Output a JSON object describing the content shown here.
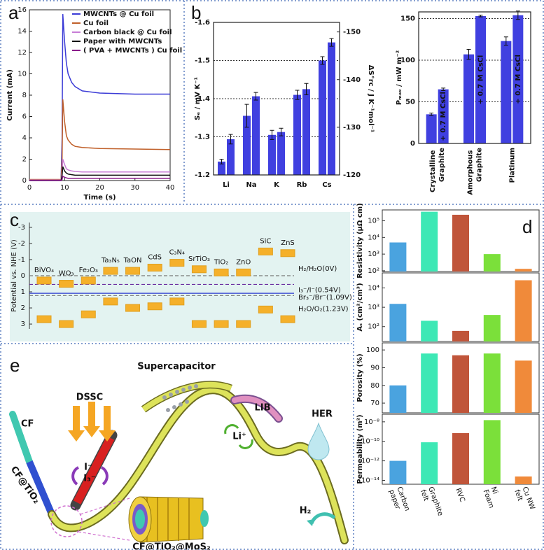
{
  "chart_data": [
    {
      "type": "line",
      "panel": "a",
      "xlabel": "Time (s)",
      "ylabel": "Current (mA)",
      "x": [
        0,
        9,
        9.3,
        9.5,
        10,
        10.5,
        11,
        12,
        13,
        15,
        20,
        30,
        40
      ],
      "xlim": [
        0,
        40
      ],
      "xticks": [
        0,
        10,
        20,
        30,
        40
      ],
      "ylim": [
        0,
        16
      ],
      "yticks": [
        0,
        2,
        4,
        6,
        8,
        10,
        12,
        14,
        16
      ],
      "legend": "upper right",
      "series": [
        {
          "name": "MWCNTs @ Cu foil",
          "color": "#3b3bd6",
          "values": [
            0,
            0,
            4,
            15.6,
            13,
            11,
            10,
            9.2,
            8.8,
            8.4,
            8.2,
            8.1,
            8.1
          ]
        },
        {
          "name": "Cu foil",
          "color": "#c0602a",
          "values": [
            0.1,
            0.1,
            2,
            7.6,
            5.5,
            4.2,
            3.8,
            3.4,
            3.2,
            3.1,
            3.0,
            2.95,
            2.9
          ]
        },
        {
          "name": "Carbon black @ Cu foil",
          "color": "#c77dd6",
          "values": [
            0.05,
            0.05,
            0.8,
            2,
            1.5,
            1.1,
            1,
            0.9,
            0.85,
            0.8,
            0.8,
            0.8,
            0.8
          ]
        },
        {
          "name": "Paper with MWCNTs",
          "color": "#111111",
          "values": [
            0,
            0,
            0.5,
            1.3,
            0.9,
            0.7,
            0.6,
            0.55,
            0.5,
            0.5,
            0.5,
            0.5,
            0.5
          ]
        },
        {
          "name": "( PVA + MWCNTs ) Cu foil",
          "color": "#8a1c8a",
          "values": [
            0,
            0,
            0.1,
            0.4,
            0.3,
            0.25,
            0.2,
            0.2,
            0.2,
            0.2,
            0.2,
            0.2,
            0.2
          ]
        }
      ]
    },
    {
      "type": "bar",
      "panel": "b",
      "ylabel": "Sₑ / mV K⁻¹",
      "y2label": "ΔS°rc / J K⁻¹mol⁻¹",
      "categories": [
        "Li",
        "Na",
        "K",
        "Rb",
        "Cs"
      ],
      "ylim": [
        -1.2,
        -1.6
      ],
      "yticks": [
        -1.2,
        -1.3,
        -1.4,
        -1.5,
        -1.6
      ],
      "y2lim": [
        -120,
        -152
      ],
      "y2ticks": [
        -120,
        -130,
        -140,
        -150
      ],
      "grid": true,
      "series": [
        {
          "color": "#4040e0",
          "values": [
            -1.235,
            -1.355,
            -1.305,
            -1.41,
            -1.5
          ],
          "errors": [
            0.006,
            0.03,
            0.012,
            0.012,
            0.01
          ]
        },
        {
          "axis": "y2",
          "color": "#4040e0",
          "values": [
            -127.5,
            -136.5,
            -129,
            -138,
            -147.8
          ],
          "errors": [
            1,
            0.8,
            0.8,
            1.2,
            0.8
          ]
        }
      ]
    },
    {
      "type": "bar",
      "ylabel": "Pₘₐₓ / mW m⁻²",
      "categories": [
        "Crystalline Graphite",
        "Amorphous Graphite",
        "Platinum"
      ],
      "ylim": [
        0,
        158
      ],
      "yticks": [
        0,
        50,
        100,
        150
      ],
      "grid": true,
      "series": [
        {
          "color": "#4040e0",
          "values": [
            35,
            107,
            123
          ],
          "errors": [
            1.5,
            6,
            5
          ]
        },
        {
          "name": "+ 0.7 M CsCl",
          "color": "#4040e0",
          "values": [
            65,
            153,
            154
          ],
          "errors": [
            1.5,
            1,
            5
          ]
        }
      ]
    },
    {
      "type": "band",
      "panel": "c",
      "ylabel": "Potential vs. NHE (V)",
      "categories": [
        "BiVO₄",
        "WO₃",
        "Fe₂O₃",
        "Ta₃N₅",
        "TaON",
        "CdS",
        "C₃N₄",
        "SrTiO₃",
        "TiO₂",
        "ZnO",
        "SiC",
        "ZnS"
      ],
      "ylim": [
        3.3,
        -3.3
      ],
      "yticks": [
        -3,
        -2,
        -1,
        0,
        1,
        2,
        3
      ],
      "series": [
        {
          "color": "#f5b02a",
          "values": [
            0.3,
            0.5,
            0.3,
            -0.3,
            -0.3,
            -0.5,
            -0.8,
            -0.4,
            -0.2,
            -0.2,
            -1.5,
            -1.4
          ]
        },
        {
          "color": "#f5b02a",
          "values": [
            2.7,
            3.0,
            2.4,
            1.6,
            2.0,
            1.9,
            1.6,
            3.0,
            3.0,
            3.0,
            2.1,
            2.7
          ]
        }
      ],
      "reference_lines": [
        {
          "label": "H₂/H₂O(0V)",
          "value": 0,
          "color": "#777777",
          "dashed": true
        },
        {
          "label": "I₃⁻/I⁻(0.54V)",
          "value": 0.54,
          "color": "#6a2ca0",
          "dashed": true
        },
        {
          "label": "Br₃⁻/Br⁻(1.09V)",
          "value": 1.09,
          "color": "#2a3ad0",
          "dashed": false
        },
        {
          "label": "H₂O/O₂(1.23V)",
          "value": 1.23,
          "color": "#777777",
          "dashed": true
        }
      ]
    },
    {
      "type": "bar-panels",
      "panel": "d",
      "categories": [
        "Carbon paper",
        "Graphite felt",
        "RVC",
        "Ni Foam",
        "Cu NW felt"
      ],
      "colors": [
        "#4aa3df",
        "#3de8b5",
        "#c0553a",
        "#7be03a",
        "#f08a3a"
      ],
      "panels": [
        {
          "ylabel": "Resistivity (μΩ cm)",
          "log": true,
          "ylim": [
            90,
            450000
          ],
          "yticks": [
            {
              "value": 100,
              "label": "10²"
            },
            {
              "value": 1000,
              "label": "10³"
            },
            {
              "value": 10000,
              "label": "10⁴"
            },
            {
              "value": 100000,
              "label": "10⁵"
            }
          ],
          "values": [
            5000,
            350000,
            230000,
            1000,
            130
          ]
        },
        {
          "ylabel": "Aₛ (cm²/cm³)",
          "log": true,
          "ylim": [
            17,
            60000
          ],
          "yticks": [
            {
              "value": 100,
              "label": "10²"
            },
            {
              "value": 1000,
              "label": "10³"
            },
            {
              "value": 10000,
              "label": "10⁴"
            }
          ],
          "values": [
            1500,
            200,
            60,
            400,
            25000
          ]
        },
        {
          "ylabel": "Porosity (%)",
          "log": false,
          "ylim": [
            64.5,
            104
          ],
          "yticks": [
            70,
            80,
            90,
            100
          ],
          "values": [
            80,
            98,
            97,
            98,
            94
          ]
        },
        {
          "ylabel": "Permeability (m²)",
          "log": true,
          "ylim": [
            4e-15,
            6e-08
          ],
          "yticks": [
            {
              "value": 1e-14,
              "label": "10⁻¹⁴"
            },
            {
              "value": 1e-12,
              "label": "10⁻¹²"
            },
            {
              "value": 1e-10,
              "label": "10⁻¹⁰"
            },
            {
              "value": 1e-08,
              "label": "10⁻⁸"
            }
          ],
          "values": [
            1e-12,
            8e-11,
            7e-10,
            1.5e-08,
            2.5e-14
          ]
        }
      ]
    }
  ],
  "diagram": {
    "panel": "e",
    "labels": [
      "Supercapacitor",
      "DSSC",
      "LIB",
      "HER",
      "CF",
      "CF@TiO₂",
      "CF@TiO₂@MoS₂",
      "I⁻",
      "I₃⁻",
      "Li⁺",
      "H₂"
    ]
  }
}
